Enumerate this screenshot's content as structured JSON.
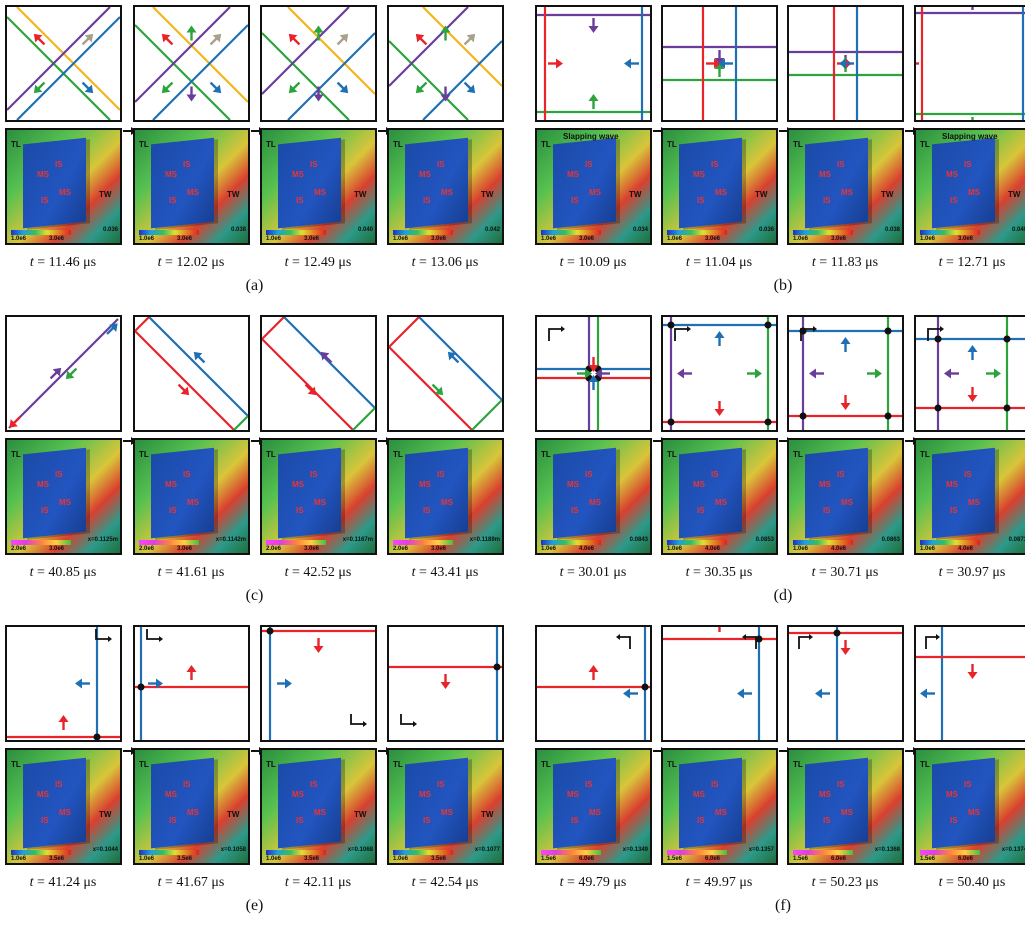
{
  "panels": [
    {
      "label": "(a)",
      "times": [
        "11.46",
        "12.02",
        "12.49",
        "13.06"
      ]
    },
    {
      "label": "(b)",
      "times": [
        "10.09",
        "11.04",
        "11.83",
        "12.71"
      ]
    },
    {
      "label": "(c)",
      "times": [
        "40.85",
        "41.61",
        "42.52",
        "43.41"
      ]
    },
    {
      "label": "(d)",
      "times": [
        "30.01",
        "30.35",
        "30.71",
        "30.97"
      ]
    },
    {
      "label": "(e)",
      "times": [
        "41.24",
        "41.67",
        "42.11",
        "42.54"
      ]
    },
    {
      "label": "(f)",
      "times": [
        "49.79",
        "49.97",
        "50.23",
        "50.40"
      ]
    }
  ],
  "time_prefix": "t",
  "time_eq": " = ",
  "time_unit": " μs",
  "sim_labels": {
    "ms": "MS",
    "is": "IS",
    "tl": "TL",
    "tw": "TW",
    "slapping": "Slapping wave"
  },
  "colorbars": {
    "a": [
      "1.0e6",
      "3.0e6"
    ],
    "b": [
      "1.0e6",
      "3.0e6"
    ],
    "c": [
      "2.0e6",
      "3.0e6"
    ],
    "d": [
      "1.0e6",
      "4.0e6"
    ],
    "e": [
      "1.0e6",
      "3.5e6"
    ],
    "f": [
      "1.5e6",
      "6.0e6"
    ]
  },
  "sim_coords": {
    "a": [
      "0.036",
      "0.038",
      "0.040",
      "0.042"
    ],
    "b": [
      "0.034",
      "0.036",
      "0.038",
      "0.040"
    ],
    "c": [
      "x=0.1125m",
      "x=0.1142m",
      "x=0.1167m",
      "x=0.1189m"
    ],
    "d": [
      "0.0843",
      "0.0853",
      "0.0863",
      "0.0873"
    ],
    "e": [
      "x=0.1044",
      "x=0.1058",
      "x=0.1068",
      "x=0.1077"
    ],
    "f": [
      "x=0.1349",
      "x=0.1357",
      "x=0.1368",
      "x=0.1374"
    ]
  },
  "colors": {
    "red": "#e8232a",
    "blue": "#1f6fb4",
    "green": "#2ca33c",
    "purple": "#6a3d9a",
    "yellow": "#f3b51b",
    "gray": "#a8a08a"
  }
}
